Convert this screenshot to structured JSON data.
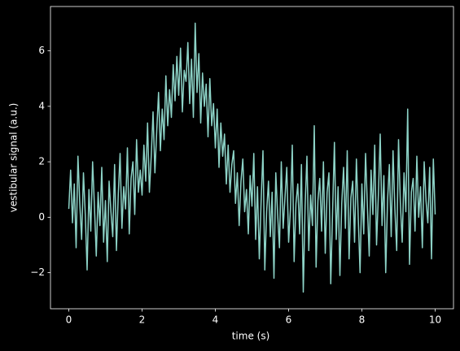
{
  "chart_data": {
    "type": "line",
    "xlabel": "time (s)",
    "ylabel": "vestibular signal (a.u.)",
    "xlim": [
      -0.5,
      10.5
    ],
    "ylim": [
      -3.3,
      7.6
    ],
    "xticks": [
      0,
      2,
      4,
      6,
      8,
      10
    ],
    "yticks": [
      {
        "value": -2,
        "label": "−2"
      },
      0,
      2,
      4,
      6
    ],
    "color": "#8dd3c7",
    "x": [
      0,
      0.05,
      0.1,
      0.15,
      0.2,
      0.25,
      0.3,
      0.35,
      0.4,
      0.45,
      0.5,
      0.55,
      0.6,
      0.65,
      0.7,
      0.75,
      0.8,
      0.85,
      0.9,
      0.95,
      1,
      1.05,
      1.1,
      1.15,
      1.2,
      1.25,
      1.3,
      1.35,
      1.4,
      1.45,
      1.5,
      1.55,
      1.6,
      1.65,
      1.7,
      1.75,
      1.8,
      1.85,
      1.9,
      1.95,
      2,
      2.05,
      2.1,
      2.15,
      2.2,
      2.25,
      2.3,
      2.35,
      2.4,
      2.45,
      2.5,
      2.55,
      2.6,
      2.65,
      2.7,
      2.75,
      2.8,
      2.85,
      2.9,
      2.95,
      3,
      3.05,
      3.1,
      3.15,
      3.2,
      3.25,
      3.3,
      3.35,
      3.4,
      3.45,
      3.5,
      3.55,
      3.6,
      3.65,
      3.7,
      3.75,
      3.8,
      3.85,
      3.9,
      3.95,
      4,
      4.05,
      4.1,
      4.15,
      4.2,
      4.25,
      4.3,
      4.35,
      4.4,
      4.45,
      4.5,
      4.55,
      4.6,
      4.65,
      4.7,
      4.75,
      4.8,
      4.85,
      4.9,
      4.95,
      5,
      5.05,
      5.1,
      5.15,
      5.2,
      5.25,
      5.3,
      5.35,
      5.4,
      5.45,
      5.5,
      5.55,
      5.6,
      5.65,
      5.7,
      5.75,
      5.8,
      5.85,
      5.9,
      5.95,
      6,
      6.05,
      6.1,
      6.15,
      6.2,
      6.25,
      6.3,
      6.35,
      6.4,
      6.45,
      6.5,
      6.55,
      6.6,
      6.65,
      6.7,
      6.75,
      6.8,
      6.85,
      6.9,
      6.95,
      7,
      7.05,
      7.1,
      7.15,
      7.2,
      7.25,
      7.3,
      7.35,
      7.4,
      7.45,
      7.5,
      7.55,
      7.6,
      7.65,
      7.7,
      7.75,
      7.8,
      7.85,
      7.9,
      7.95,
      8,
      8.05,
      8.1,
      8.15,
      8.2,
      8.25,
      8.3,
      8.35,
      8.4,
      8.45,
      8.5,
      8.55,
      8.6,
      8.65,
      8.7,
      8.75,
      8.8,
      8.85,
      8.9,
      8.95,
      9,
      9.05,
      9.1,
      9.15,
      9.2,
      9.25,
      9.3,
      9.35,
      9.4,
      9.45,
      9.5,
      9.55,
      9.6,
      9.65,
      9.7,
      9.75,
      9.8,
      9.85,
      9.9,
      9.95,
      10
    ],
    "values": [
      0.3,
      1.7,
      -0.2,
      1.2,
      -1.1,
      2.2,
      0.5,
      -0.8,
      1.6,
      0.1,
      -1.9,
      1.0,
      -0.5,
      2.0,
      0.4,
      -1.4,
      0.9,
      -0.3,
      1.8,
      -0.9,
      0.6,
      -1.6,
      1.3,
      0.2,
      -0.7,
      1.9,
      -1.2,
      0.8,
      2.3,
      -0.4,
      1.1,
      0.3,
      2.5,
      -0.6,
      1.4,
      2.0,
      0.1,
      2.8,
      0.9,
      1.7,
      0.8,
      2.6,
      1.3,
      3.4,
      0.9,
      2.2,
      3.8,
      1.6,
      3.1,
      4.5,
      2.4,
      3.9,
      2.8,
      5.1,
      3.3,
      4.6,
      3.6,
      5.5,
      4.2,
      5.8,
      4.4,
      6.1,
      3.8,
      5.3,
      4.9,
      6.3,
      4.1,
      5.7,
      3.6,
      7.0,
      4.5,
      5.9,
      3.4,
      5.2,
      4.0,
      4.8,
      2.9,
      5.0,
      3.3,
      4.1,
      2.5,
      3.9,
      1.8,
      3.4,
      2.2,
      3.0,
      1.2,
      2.6,
      0.9,
      1.9,
      2.4,
      0.5,
      1.6,
      -0.3,
      1.3,
      2.1,
      0.2,
      1.0,
      -0.6,
      1.5,
      0.4,
      2.3,
      -0.8,
      1.1,
      -1.5,
      0.6,
      2.4,
      -1.9,
      0.2,
      1.3,
      -0.7,
      0.9,
      -2.2,
      1.6,
      0.1,
      -1.1,
      2.0,
      -0.4,
      0.7,
      1.8,
      -0.9,
      0.3,
      2.6,
      -1.6,
      0.5,
      1.2,
      -0.6,
      1.9,
      -2.7,
      0.4,
      2.2,
      -1.2,
      0.8,
      -0.3,
      3.3,
      -1.8,
      0.6,
      1.4,
      -0.5,
      2.0,
      -1.3,
      0.9,
      1.6,
      -2.4,
      0.2,
      2.7,
      -0.8,
      1.1,
      -2.1,
      0.5,
      1.8,
      -0.4,
      2.4,
      -1.5,
      0.7,
      1.3,
      -0.9,
      2.1,
      0.0,
      -2.0,
      1.2,
      -0.6,
      2.3,
      0.4,
      -1.4,
      1.7,
      0.1,
      2.6,
      -1.0,
      0.8,
      3.0,
      -0.3,
      1.5,
      -2.0,
      0.6,
      1.9,
      -0.7,
      2.4,
      0.3,
      -1.2,
      2.8,
      0.5,
      -0.9,
      1.6,
      0.2,
      3.9,
      -1.7,
      0.9,
      1.4,
      -0.5,
      2.2,
      0.0,
      1.1,
      -1.1,
      2.0,
      0.6,
      -0.2,
      1.8,
      -1.5,
      2.1,
      0.1
    ]
  }
}
